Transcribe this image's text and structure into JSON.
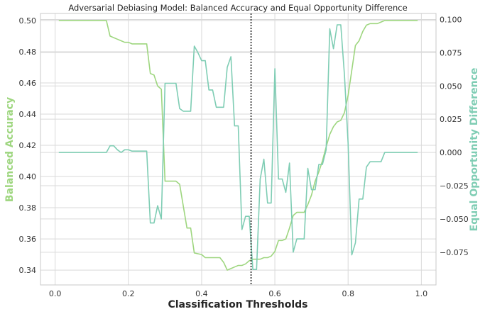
{
  "chart_data": {
    "type": "line",
    "title": "Adversarial Debiasing Model: Balanced Accuracy and Equal Opportunity Difference",
    "xlabel": "Classification Thresholds",
    "ylabel_left": "Balanced Accuracy",
    "ylabel_right": "Equal Opportunity Difference",
    "xlim": [
      -0.04,
      1.04
    ],
    "ylim_left": [
      0.3305,
      0.5045
    ],
    "ylim_right": [
      -0.0996,
      0.1045
    ],
    "x_ticks": [
      "0.0",
      "0.2",
      "0.4",
      "0.6",
      "0.8",
      "1.0"
    ],
    "y_ticks_left": [
      "0.34",
      "0.36",
      "0.38",
      "0.40",
      "0.42",
      "0.44",
      "0.46",
      "0.48",
      "0.50"
    ],
    "y_ticks_right": [
      "−0.075",
      "−0.050",
      "−0.025",
      "0.000",
      "0.025",
      "0.050",
      "0.075",
      "0.100"
    ],
    "grid": true,
    "vline_x": 0.535,
    "colors": {
      "balanced_accuracy": "#9ed67f",
      "equal_opportunity": "#7fcdb4",
      "vline": "#222222",
      "grid": "#d9d9d9",
      "spine": "#c8c8c8"
    },
    "series": [
      {
        "axis": "left",
        "x": [
          0.01,
          0.14,
          0.15,
          0.16,
          0.17,
          0.18,
          0.19,
          0.2,
          0.21,
          0.22,
          0.25,
          0.26,
          0.27,
          0.28,
          0.29,
          0.3,
          0.32,
          0.33,
          0.34,
          0.36,
          0.37,
          0.38,
          0.4,
          0.41,
          0.45,
          0.46,
          0.47,
          0.48,
          0.49,
          0.5,
          0.51,
          0.52,
          0.53,
          0.54,
          0.56,
          0.57,
          0.58,
          0.59,
          0.6,
          0.61,
          0.62,
          0.63,
          0.64,
          0.65,
          0.66,
          0.67,
          0.68,
          0.69,
          0.7,
          0.71,
          0.72,
          0.73,
          0.74,
          0.75,
          0.76,
          0.77,
          0.78,
          0.79,
          0.8,
          0.81,
          0.82,
          0.83,
          0.84,
          0.85,
          0.86,
          0.87,
          0.88,
          0.89,
          0.9,
          0.99
        ],
        "values": [
          0.5,
          0.5,
          0.49,
          0.489,
          0.488,
          0.487,
          0.486,
          0.486,
          0.485,
          0.485,
          0.485,
          0.466,
          0.465,
          0.458,
          0.456,
          0.397,
          0.397,
          0.397,
          0.395,
          0.367,
          0.367,
          0.351,
          0.35,
          0.348,
          0.348,
          0.345,
          0.34,
          0.341,
          0.342,
          0.343,
          0.343,
          0.344,
          0.346,
          0.347,
          0.347,
          0.348,
          0.348,
          0.349,
          0.352,
          0.359,
          0.359,
          0.36,
          0.367,
          0.375,
          0.377,
          0.377,
          0.377,
          0.382,
          0.388,
          0.397,
          0.403,
          0.41,
          0.419,
          0.427,
          0.432,
          0.435,
          0.436,
          0.441,
          0.452,
          0.468,
          0.484,
          0.487,
          0.493,
          0.497,
          0.498,
          0.498,
          0.498,
          0.499,
          0.5,
          0.5
        ]
      },
      {
        "axis": "right",
        "x": [
          0.01,
          0.14,
          0.15,
          0.16,
          0.17,
          0.18,
          0.19,
          0.2,
          0.21,
          0.22,
          0.25,
          0.26,
          0.27,
          0.28,
          0.29,
          0.3,
          0.31,
          0.33,
          0.34,
          0.35,
          0.36,
          0.37,
          0.38,
          0.39,
          0.4,
          0.41,
          0.42,
          0.43,
          0.44,
          0.45,
          0.46,
          0.47,
          0.48,
          0.49,
          0.5,
          0.51,
          0.52,
          0.53,
          0.54,
          0.55,
          0.56,
          0.57,
          0.58,
          0.59,
          0.6,
          0.61,
          0.62,
          0.63,
          0.64,
          0.65,
          0.66,
          0.67,
          0.68,
          0.69,
          0.7,
          0.71,
          0.72,
          0.73,
          0.74,
          0.75,
          0.76,
          0.77,
          0.78,
          0.79,
          0.8,
          0.81,
          0.82,
          0.83,
          0.84,
          0.85,
          0.86,
          0.87,
          0.88,
          0.89,
          0.9,
          0.99
        ],
        "values": [
          0.0,
          0.0,
          0.005,
          0.005,
          0.002,
          0.0,
          0.002,
          0.002,
          0.001,
          0.001,
          0.001,
          -0.053,
          -0.053,
          -0.04,
          -0.05,
          0.052,
          0.052,
          0.052,
          0.033,
          0.031,
          0.031,
          0.031,
          0.08,
          0.075,
          0.069,
          0.069,
          0.047,
          0.047,
          0.034,
          0.034,
          0.034,
          0.064,
          0.072,
          0.02,
          0.02,
          -0.058,
          -0.048,
          -0.048,
          -0.088,
          -0.088,
          -0.02,
          -0.005,
          -0.038,
          -0.038,
          0.063,
          -0.02,
          -0.02,
          -0.03,
          -0.008,
          -0.075,
          -0.065,
          -0.065,
          -0.065,
          -0.012,
          -0.028,
          -0.028,
          -0.009,
          -0.009,
          0.002,
          0.093,
          0.078,
          0.096,
          0.096,
          0.058,
          0.007,
          -0.077,
          -0.068,
          -0.035,
          -0.035,
          -0.011,
          -0.007,
          -0.007,
          -0.007,
          -0.007,
          0.0,
          0.0
        ]
      }
    ]
  }
}
